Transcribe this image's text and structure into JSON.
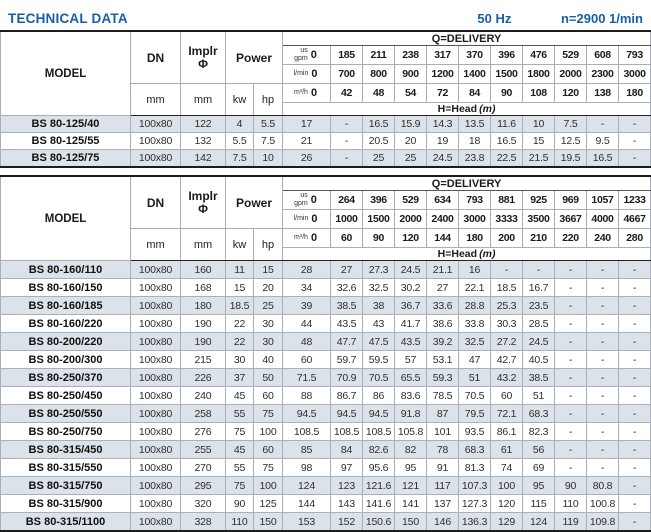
{
  "title": "TECHNICAL DATA",
  "frequency": "50 Hz",
  "speed": "n=2900 1/min",
  "accent_color": "#1a5fa5",
  "stripe_color": "#dbe2e9",
  "tables": [
    {
      "name": "bs80-125-series",
      "header": {
        "model": "MODEL",
        "dn": "DN",
        "implr_line1": "Implr",
        "implr_line2": "Φ",
        "power": "Power",
        "mm": "mm",
        "kw": "kw",
        "hp": "hp",
        "q_title": "Q=DELIVERY",
        "h_title": "H=Head",
        "h_unit": "(m)",
        "unit_rows": [
          {
            "label": "us\ngpm",
            "zero": "0",
            "values": [
              "185",
              "211",
              "238",
              "317",
              "370",
              "396",
              "476",
              "529",
              "608",
              "793"
            ]
          },
          {
            "label": "l/min",
            "zero": "0",
            "values": [
              "700",
              "800",
              "900",
              "1200",
              "1400",
              "1500",
              "1800",
              "2000",
              "2300",
              "3000"
            ]
          },
          {
            "label": "m³/h",
            "zero": "0",
            "values": [
              "42",
              "48",
              "54",
              "72",
              "84",
              "90",
              "108",
              "120",
              "138",
              "180"
            ]
          }
        ]
      },
      "rows": [
        {
          "model": "BS 80-125/40",
          "dn": "100x80",
          "implr": "122",
          "kw": "4",
          "hp": "5.5",
          "head": [
            "17",
            "-",
            "16.5",
            "15.9",
            "14.3",
            "13.5",
            "11.6",
            "10",
            "7.5",
            "-",
            "-"
          ]
        },
        {
          "model": "BS 80-125/55",
          "dn": "100x80",
          "implr": "132",
          "kw": "5.5",
          "hp": "7.5",
          "head": [
            "21",
            "-",
            "20.5",
            "20",
            "19",
            "18",
            "16.5",
            "15",
            "12.5",
            "9.5",
            "-"
          ]
        },
        {
          "model": "BS 80-125/75",
          "dn": "100x80",
          "implr": "142",
          "kw": "7.5",
          "hp": "10",
          "head": [
            "26",
            "-",
            "25",
            "25",
            "24.5",
            "23.8",
            "22.5",
            "21.5",
            "19.5",
            "16.5",
            "-"
          ]
        }
      ]
    },
    {
      "name": "bs80-160-to-315-series",
      "header": {
        "model": "MODEL",
        "dn": "DN",
        "implr_line1": "Implr",
        "implr_line2": "Φ",
        "power": "Power",
        "mm": "mm",
        "kw": "kw",
        "hp": "hp",
        "q_title": "Q=DELIVERY",
        "h_title": "H=Head",
        "h_unit": "(m)",
        "unit_rows": [
          {
            "label": "us\ngpm",
            "zero": "0",
            "values": [
              "264",
              "396",
              "529",
              "634",
              "793",
              "881",
              "925",
              "969",
              "1057",
              "1233"
            ]
          },
          {
            "label": "l/min",
            "zero": "0",
            "values": [
              "1000",
              "1500",
              "2000",
              "2400",
              "3000",
              "3333",
              "3500",
              "3667",
              "4000",
              "4667"
            ]
          },
          {
            "label": "m³/h",
            "zero": "0",
            "values": [
              "60",
              "90",
              "120",
              "144",
              "180",
              "200",
              "210",
              "220",
              "240",
              "280"
            ]
          }
        ]
      },
      "rows": [
        {
          "model": "BS 80-160/110",
          "dn": "100x80",
          "implr": "160",
          "kw": "11",
          "hp": "15",
          "head": [
            "28",
            "27",
            "27.3",
            "24.5",
            "21.1",
            "16",
            "-",
            "-",
            "-",
            "-",
            "-"
          ]
        },
        {
          "model": "BS 80-160/150",
          "dn": "100x80",
          "implr": "168",
          "kw": "15",
          "hp": "20",
          "head": [
            "34",
            "32.6",
            "32.5",
            "30.2",
            "27",
            "22.1",
            "18.5",
            "16.7",
            "-",
            "-",
            "-"
          ]
        },
        {
          "model": "BS 80-160/185",
          "dn": "100x80",
          "implr": "180",
          "kw": "18.5",
          "hp": "25",
          "head": [
            "39",
            "38.5",
            "38",
            "36.7",
            "33.6",
            "28.8",
            "25.3",
            "23.5",
            "-",
            "-",
            "-"
          ]
        },
        {
          "model": "BS 80-160/220",
          "dn": "100x80",
          "implr": "190",
          "kw": "22",
          "hp": "30",
          "head": [
            "44",
            "43.5",
            "43",
            "41.7",
            "38.6",
            "33.8",
            "30.3",
            "28.5",
            "-",
            "-",
            "-"
          ]
        },
        {
          "model": "BS 80-200/220",
          "dn": "100x80",
          "implr": "190",
          "kw": "22",
          "hp": "30",
          "head": [
            "48",
            "47.7",
            "47.5",
            "43.5",
            "39.2",
            "32.5",
            "27.2",
            "24.5",
            "-",
            "-",
            "-"
          ]
        },
        {
          "model": "BS 80-200/300",
          "dn": "100x80",
          "implr": "215",
          "kw": "30",
          "hp": "40",
          "head": [
            "60",
            "59.7",
            "59.5",
            "57",
            "53.1",
            "47",
            "42.7",
            "40.5",
            "-",
            "-",
            "-"
          ]
        },
        {
          "model": "BS 80-250/370",
          "dn": "100x80",
          "implr": "226",
          "kw": "37",
          "hp": "50",
          "head": [
            "71.5",
            "70.9",
            "70.5",
            "65.5",
            "59.3",
            "51",
            "43.2",
            "38.5",
            "-",
            "-",
            "-"
          ]
        },
        {
          "model": "BS 80-250/450",
          "dn": "100x80",
          "implr": "240",
          "kw": "45",
          "hp": "60",
          "head": [
            "88",
            "86.7",
            "86",
            "83.6",
            "78.5",
            "70.5",
            "60",
            "51",
            "-",
            "-",
            "-"
          ]
        },
        {
          "model": "BS 80-250/550",
          "dn": "100x80",
          "implr": "258",
          "kw": "55",
          "hp": "75",
          "head": [
            "94.5",
            "94.5",
            "94.5",
            "91.8",
            "87",
            "79.5",
            "72.1",
            "68.3",
            "-",
            "-",
            "-"
          ]
        },
        {
          "model": "BS 80-250/750",
          "dn": "100x80",
          "implr": "276",
          "kw": "75",
          "hp": "100",
          "head": [
            "108.5",
            "108.5",
            "108.5",
            "105.8",
            "101",
            "93.5",
            "86.1",
            "82.3",
            "-",
            "-",
            "-"
          ]
        },
        {
          "model": "BS 80-315/450",
          "dn": "100x80",
          "implr": "255",
          "kw": "45",
          "hp": "60",
          "head": [
            "85",
            "84",
            "82.6",
            "82",
            "78",
            "68.3",
            "61",
            "56",
            "-",
            "-",
            "-"
          ]
        },
        {
          "model": "BS 80-315/550",
          "dn": "100x80",
          "implr": "270",
          "kw": "55",
          "hp": "75",
          "head": [
            "98",
            "97",
            "95.6",
            "95",
            "91",
            "81.3",
            "74",
            "69",
            "-",
            "-",
            "-"
          ]
        },
        {
          "model": "BS 80-315/750",
          "dn": "100x80",
          "implr": "295",
          "kw": "75",
          "hp": "100",
          "head": [
            "124",
            "123",
            "121.6",
            "121",
            "117",
            "107.3",
            "100",
            "95",
            "90",
            "80.8",
            "-"
          ]
        },
        {
          "model": "BS 80-315/900",
          "dn": "100x80",
          "implr": "320",
          "kw": "90",
          "hp": "125",
          "head": [
            "144",
            "143",
            "141.6",
            "141",
            "137",
            "127.3",
            "120",
            "115",
            "110",
            "100.8",
            "-"
          ]
        },
        {
          "model": "BS 80-315/1100",
          "dn": "100x80",
          "implr": "328",
          "kw": "110",
          "hp": "150",
          "head": [
            "153",
            "152",
            "150.6",
            "150",
            "146",
            "136.3",
            "129",
            "124",
            "119",
            "109.8",
            "-"
          ]
        }
      ]
    }
  ]
}
